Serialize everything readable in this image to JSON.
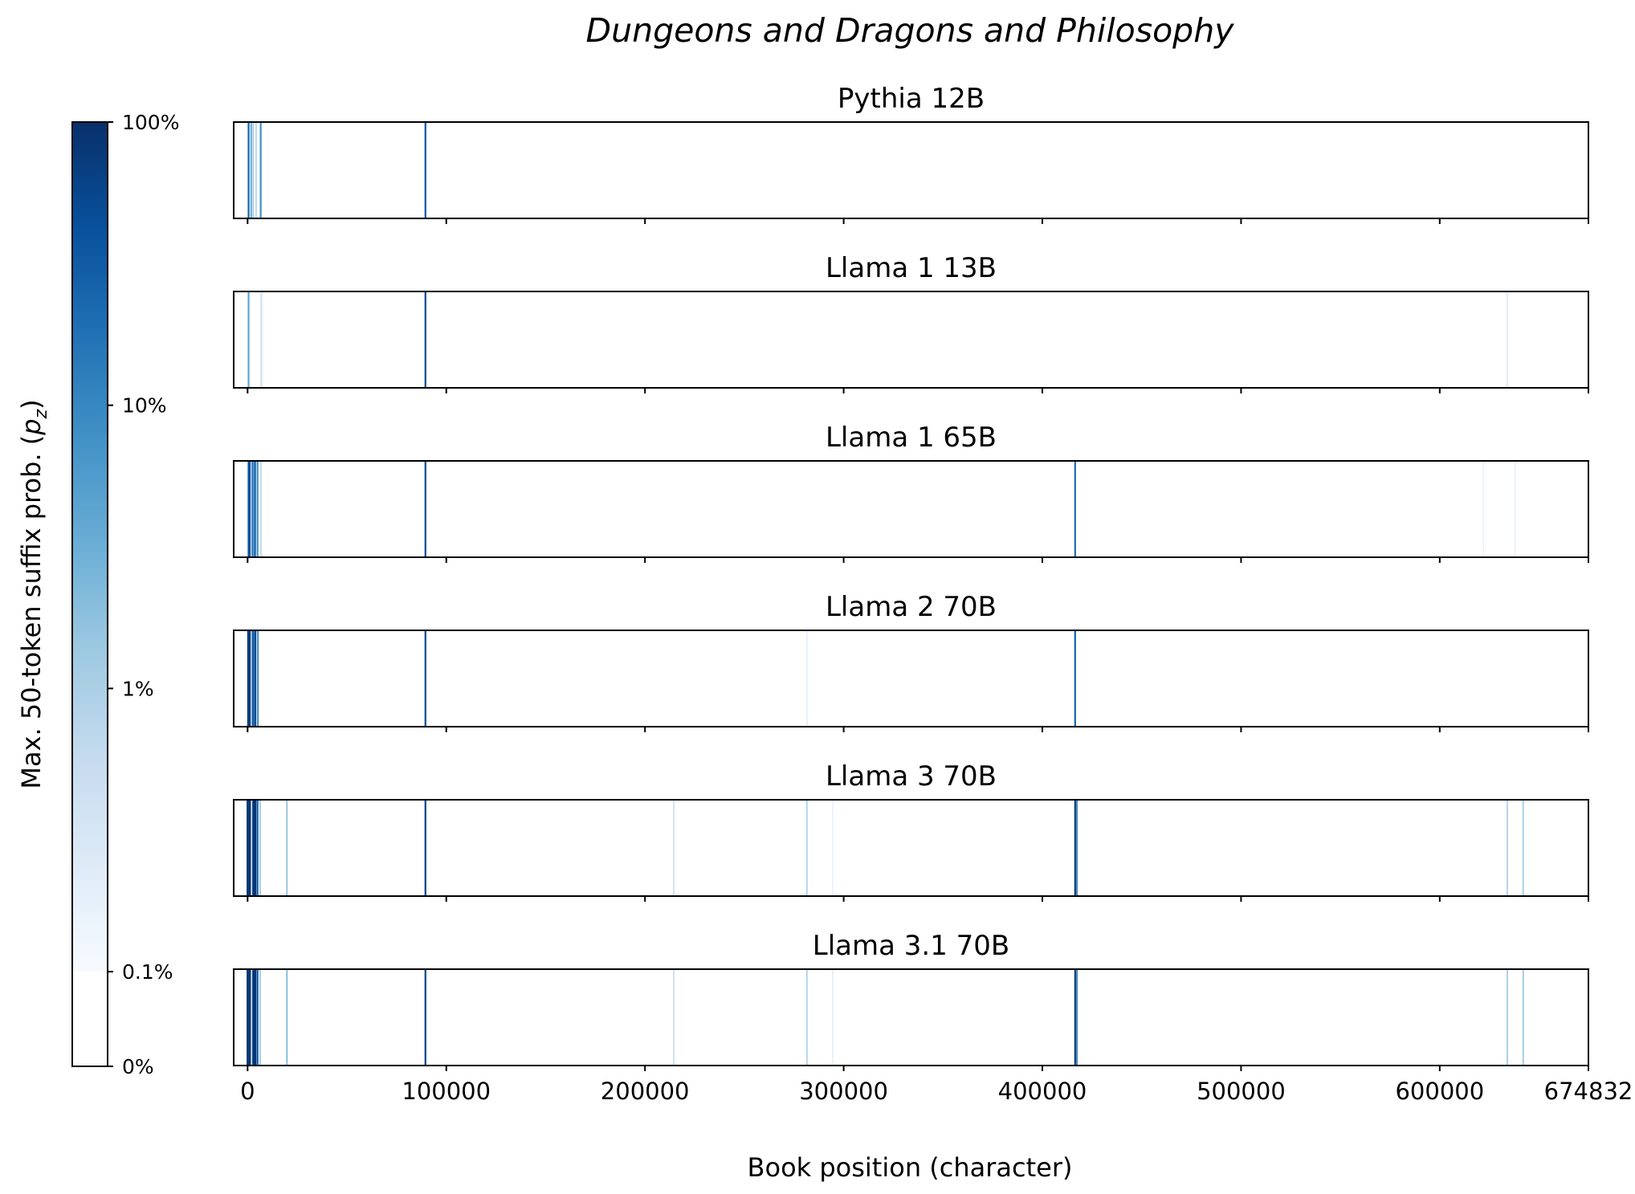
{
  "chart_data": {
    "type": "heatmap",
    "title": "Dungeons and Dragons and Philosophy",
    "xlabel": "Book position (character)",
    "xlim": [
      -7000,
      674832
    ],
    "x_ticks": [
      0,
      100000,
      200000,
      300000,
      400000,
      500000,
      600000,
      674832
    ],
    "x_tick_labels": [
      "0",
      "100000",
      "200000",
      "300000",
      "400000",
      "500000",
      "600000",
      "674832"
    ],
    "colorbar": {
      "label": "Max. 50-token suffix prob. (p_z)",
      "label_text": "Max. 50-token suffix prob. (",
      "label_symbol": "p",
      "label_subscript": "z",
      "label_end": ")",
      "colormap": "Blues",
      "scale": "log",
      "tick_values": [
        0,
        0.001,
        0.01,
        0.1,
        1
      ],
      "tick_labels": [
        "0%",
        "0.1%",
        "1%",
        "10%",
        "100%"
      ]
    },
    "panels": [
      {
        "title": "Pythia 12B",
        "marks": [
          {
            "x": 500,
            "width": 900,
            "p": 0.25
          },
          {
            "x": 1800,
            "width": 700,
            "p": 0.05
          },
          {
            "x": 2800,
            "width": 600,
            "p": 0.015
          },
          {
            "x": 4300,
            "width": 900,
            "p": 0.006
          },
          {
            "x": 6600,
            "width": 900,
            "p": 0.08
          },
          {
            "x": 89500,
            "width": 900,
            "p": 0.35
          }
        ]
      },
      {
        "title": "Llama 1 13B",
        "marks": [
          {
            "x": 500,
            "width": 900,
            "p": 0.04
          },
          {
            "x": 6900,
            "width": 900,
            "p": 0.004
          },
          {
            "x": 89500,
            "width": 900,
            "p": 0.5
          },
          {
            "x": 634000,
            "width": 700,
            "p": 0.0025
          }
        ]
      },
      {
        "title": "Llama 1 65B",
        "marks": [
          {
            "x": 800,
            "width": 1500,
            "p": 0.4
          },
          {
            "x": 2500,
            "width": 1000,
            "p": 0.15
          },
          {
            "x": 3700,
            "width": 1000,
            "p": 0.3
          },
          {
            "x": 5000,
            "width": 900,
            "p": 0.08
          },
          {
            "x": 6800,
            "width": 800,
            "p": 0.006
          },
          {
            "x": 89500,
            "width": 900,
            "p": 0.5
          },
          {
            "x": 416500,
            "width": 900,
            "p": 0.2
          },
          {
            "x": 622000,
            "width": 700,
            "p": 0.0015
          },
          {
            "x": 638000,
            "width": 700,
            "p": 0.0015
          }
        ]
      },
      {
        "title": "Llama 2 70B",
        "marks": [
          {
            "x": 700,
            "width": 1800,
            "p": 0.7
          },
          {
            "x": 2600,
            "width": 1000,
            "p": 0.3
          },
          {
            "x": 3800,
            "width": 1200,
            "p": 0.55
          },
          {
            "x": 5200,
            "width": 800,
            "p": 0.1
          },
          {
            "x": 89500,
            "width": 900,
            "p": 0.5
          },
          {
            "x": 281500,
            "width": 700,
            "p": 0.002
          },
          {
            "x": 416500,
            "width": 900,
            "p": 0.25
          }
        ]
      },
      {
        "title": "Llama 3 70B",
        "marks": [
          {
            "x": 600,
            "width": 2200,
            "p": 0.85
          },
          {
            "x": 2700,
            "width": 900,
            "p": 0.4
          },
          {
            "x": 3600,
            "width": 1600,
            "p": 0.9
          },
          {
            "x": 5000,
            "width": 900,
            "p": 0.3
          },
          {
            "x": 6300,
            "width": 600,
            "p": 0.02
          },
          {
            "x": 19800,
            "width": 800,
            "p": 0.015
          },
          {
            "x": 89500,
            "width": 900,
            "p": 0.6
          },
          {
            "x": 214500,
            "width": 700,
            "p": 0.004
          },
          {
            "x": 281500,
            "width": 700,
            "p": 0.01
          },
          {
            "x": 294500,
            "width": 700,
            "p": 0.0015
          },
          {
            "x": 416500,
            "width": 900,
            "p": 0.7
          },
          {
            "x": 417400,
            "width": 600,
            "p": 0.3
          },
          {
            "x": 634000,
            "width": 800,
            "p": 0.008
          },
          {
            "x": 642000,
            "width": 800,
            "p": 0.01
          }
        ]
      },
      {
        "title": "Llama 3.1 70B",
        "marks": [
          {
            "x": 600,
            "width": 2200,
            "p": 0.85
          },
          {
            "x": 2700,
            "width": 900,
            "p": 0.45
          },
          {
            "x": 3600,
            "width": 1600,
            "p": 0.9
          },
          {
            "x": 5000,
            "width": 900,
            "p": 0.35
          },
          {
            "x": 6300,
            "width": 600,
            "p": 0.02
          },
          {
            "x": 19800,
            "width": 800,
            "p": 0.02
          },
          {
            "x": 89500,
            "width": 900,
            "p": 0.6
          },
          {
            "x": 214500,
            "width": 700,
            "p": 0.005
          },
          {
            "x": 281500,
            "width": 700,
            "p": 0.01
          },
          {
            "x": 294500,
            "width": 700,
            "p": 0.002
          },
          {
            "x": 416500,
            "width": 900,
            "p": 0.7
          },
          {
            "x": 417400,
            "width": 600,
            "p": 0.3
          },
          {
            "x": 634000,
            "width": 800,
            "p": 0.01
          },
          {
            "x": 642000,
            "width": 800,
            "p": 0.012
          }
        ]
      }
    ]
  }
}
